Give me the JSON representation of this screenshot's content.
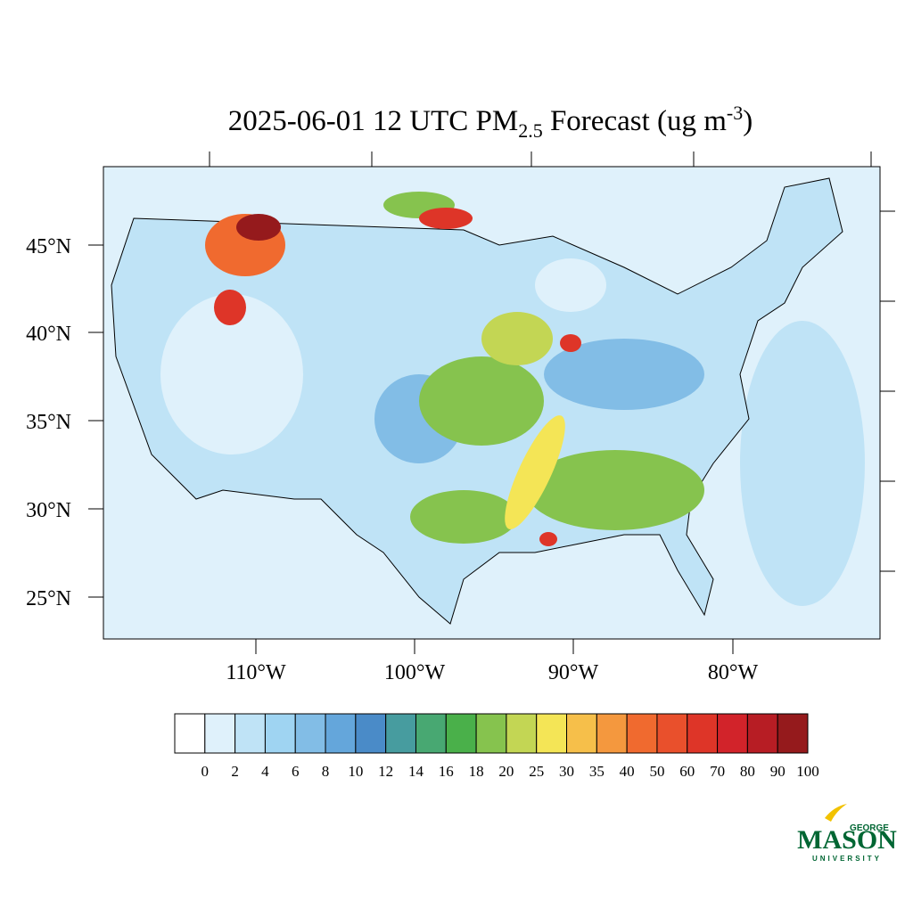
{
  "title": {
    "main": "2025-06-01 12 UTC PM",
    "sub": "2.5",
    "middle": " Forecast (ug m",
    "sup": "-3",
    "end": ")"
  },
  "map": {
    "lat_labels": [
      "45°N",
      "40°N",
      "35°N",
      "30°N",
      "25°N"
    ],
    "lon_labels": [
      "110°W",
      "100°W",
      "90°W",
      "80°W"
    ]
  },
  "colorbar": {
    "levels": [
      0,
      2,
      4,
      6,
      8,
      10,
      12,
      14,
      16,
      18,
      20,
      25,
      30,
      35,
      40,
      50,
      60,
      70,
      80,
      90,
      100
    ],
    "colors": [
      "#ffffff",
      "#dff1fb",
      "#bfe3f6",
      "#9fd4f2",
      "#82bde6",
      "#64a6db",
      "#4a8bc8",
      "#479c9f",
      "#48a872",
      "#4ab04a",
      "#86c34e",
      "#c3d654",
      "#f4e556",
      "#f6bf4a",
      "#f4983e",
      "#f06a2f",
      "#e9502c",
      "#de3528",
      "#d2232a",
      "#b71d24",
      "#951a1c"
    ]
  },
  "logo": {
    "top": "GEORGE",
    "main": "MASON",
    "bottom": "UNIVERSITY"
  }
}
